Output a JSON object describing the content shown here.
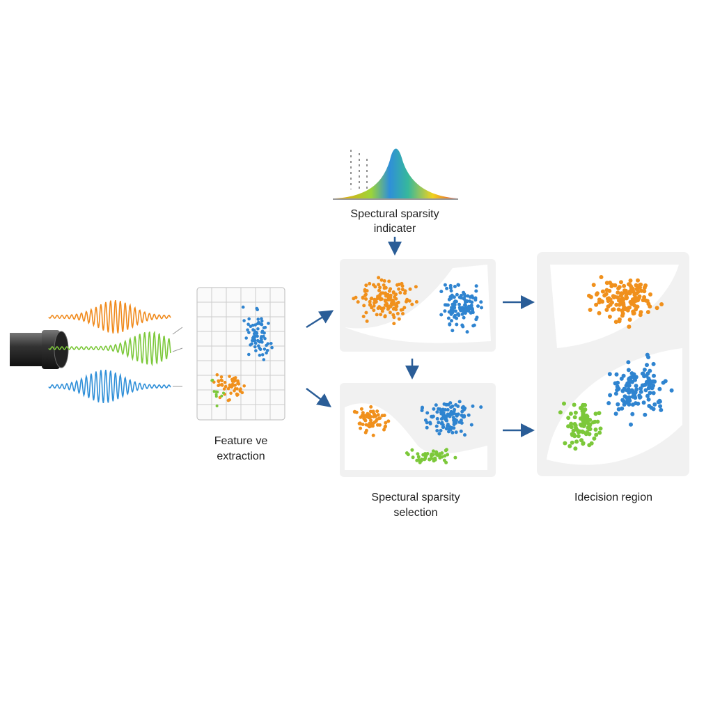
{
  "nodes": [
    {
      "label": [
        "Spectural sparsity",
        "indicater"
      ]
    },
    {
      "label": [
        "Feature ve",
        "extraction"
      ]
    },
    {
      "label": [
        "Spectural sparsity",
        "selection"
      ]
    },
    {
      "label": [
        "Idecision region"
      ]
    }
  ]
}
